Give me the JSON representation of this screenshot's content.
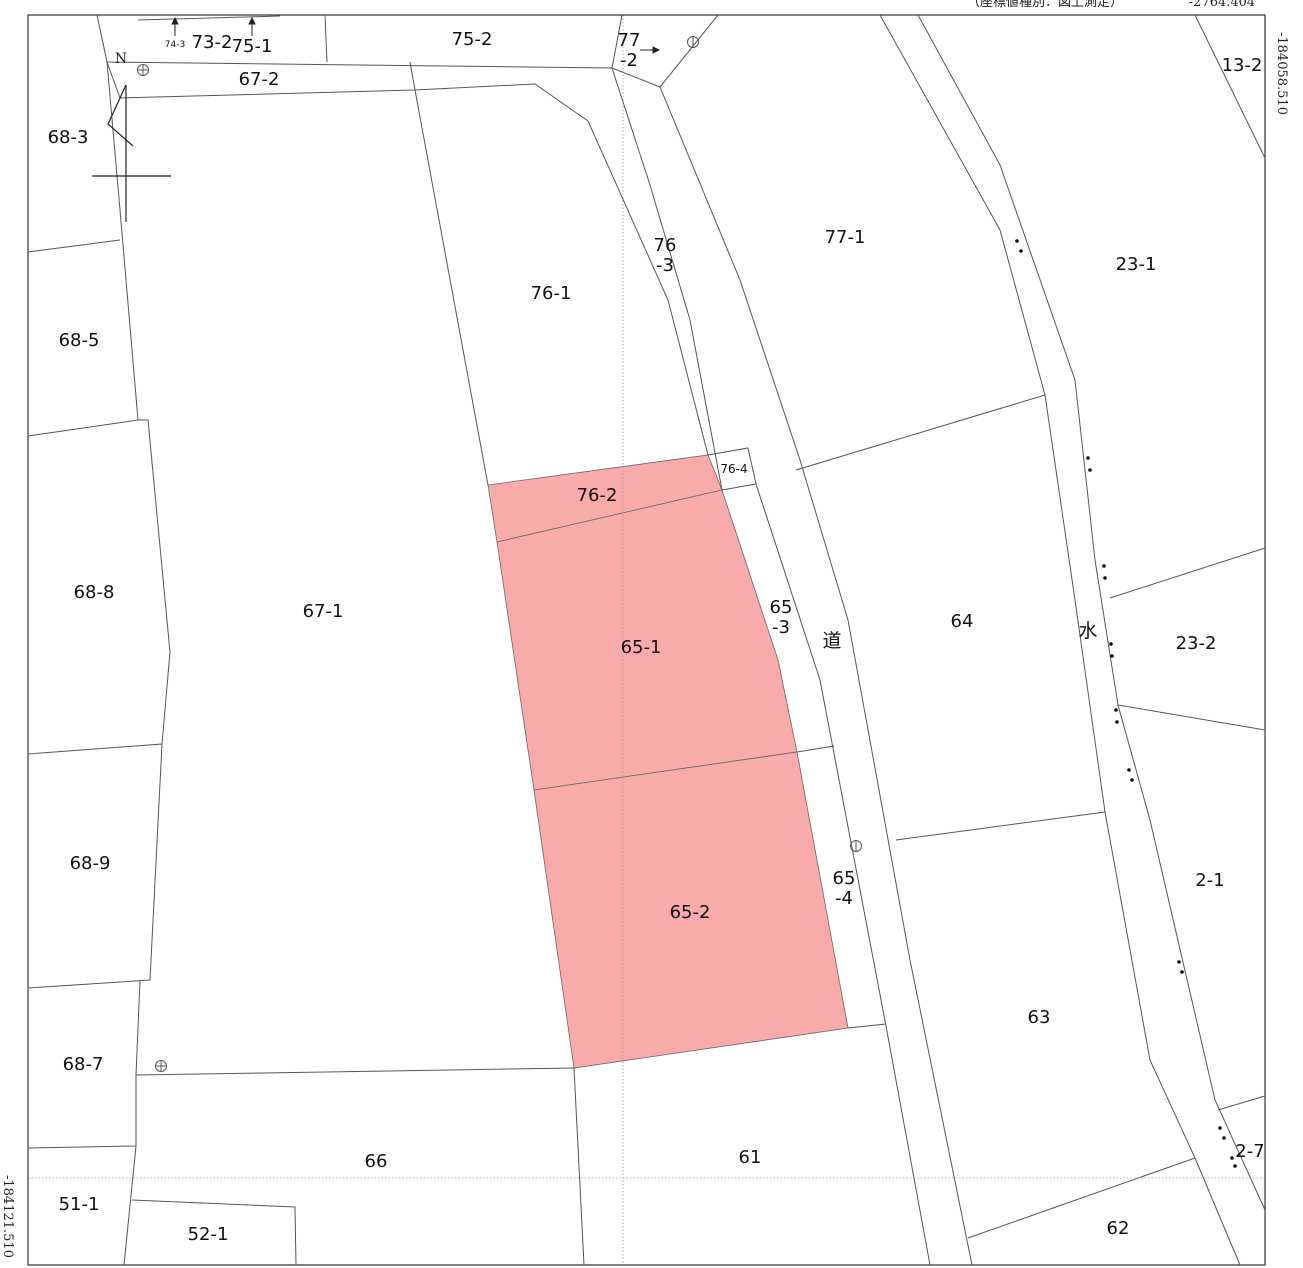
{
  "header_note": "（座標値種別：図上測定）",
  "header_value": "-2764.404",
  "coord_right": "-184058.510",
  "coord_left": "-184121.510",
  "north_label": "N",
  "highlight_color": "#f9aaab",
  "parcels": {
    "p73_2": "73-2",
    "p74_3": "74-3",
    "p75_1": "75-1",
    "p75_2": "75-2",
    "p77_2a": "77",
    "p77_2b": "-2",
    "p67_2": "67-2",
    "p68_3": "68-3",
    "p68_5": "68-5",
    "p68_8": "68-8",
    "p68_9": "68-9",
    "p68_7": "68-7",
    "p76_1": "76-1",
    "p76_3a": "76",
    "p76_3b": "-3",
    "p77_1": "77-1",
    "p23_1": "23-1",
    "p13_2": "13-2",
    "p76_4": "76-4",
    "p76_2": "76-2",
    "p67_1": "67-1",
    "p65_1": "65-1",
    "p65_3a": "65",
    "p65_3b": "-3",
    "road": "道",
    "p64": "64",
    "water": "水",
    "p23_2": "23-2",
    "p65_4a": "65",
    "p65_4b": "-4",
    "p65_2": "65-2",
    "p2_1": "2-1",
    "p63": "63",
    "p66": "66",
    "p61": "61",
    "p2_7": "2-7",
    "p51_1": "51-1",
    "p52_1": "52-1",
    "p62": "62"
  }
}
